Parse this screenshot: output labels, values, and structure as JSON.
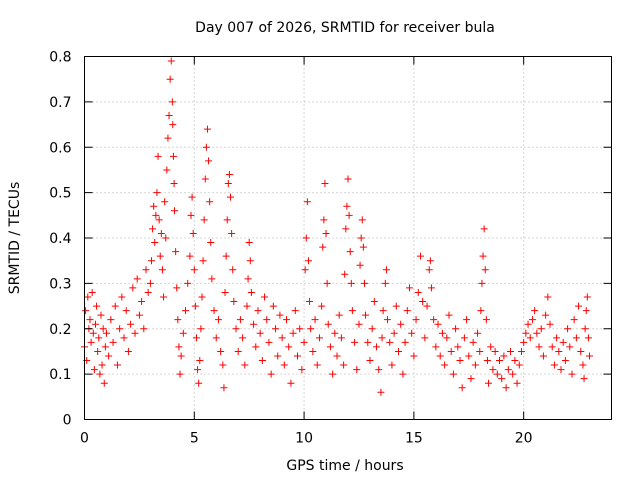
{
  "chart_data": {
    "type": "scatter",
    "title": "Day 007 of 2026, SRMTID for receiver bula",
    "xlabel": "GPS time / hours",
    "ylabel": "SRMTID / TECUs",
    "xlim": [
      0,
      24
    ],
    "ylim": [
      0,
      0.8
    ],
    "xticks": [
      0,
      5,
      10,
      15,
      20
    ],
    "xtick_labels": [
      "0",
      "5",
      "10",
      "15",
      "20"
    ],
    "yticks": [
      0,
      0.1,
      0.2,
      0.3,
      0.4,
      0.5,
      0.6,
      0.7,
      0.8
    ],
    "ytick_labels": [
      "0",
      "0.1",
      "0.2",
      "0.3",
      "0.4",
      "0.5",
      "0.6",
      "0.7",
      "0.8"
    ],
    "grid": true,
    "marker": "plus",
    "series_color": "#ff0000",
    "series": [
      {
        "name": "SRMTID",
        "points": [
          [
            0.0,
            0.16
          ],
          [
            0.05,
            0.24
          ],
          [
            0.1,
            0.13
          ],
          [
            0.15,
            0.27
          ],
          [
            0.2,
            0.2
          ],
          [
            0.25,
            0.22
          ],
          [
            0.3,
            0.17
          ],
          [
            0.35,
            0.28
          ],
          [
            0.4,
            0.19
          ],
          [
            0.45,
            0.11
          ],
          [
            0.5,
            0.21
          ],
          [
            0.55,
            0.25
          ],
          [
            0.6,
            0.15
          ],
          [
            0.65,
            0.18
          ],
          [
            0.7,
            0.1
          ],
          [
            0.75,
            0.23
          ],
          [
            0.8,
            0.12
          ],
          [
            0.85,
            0.2
          ],
          [
            0.9,
            0.08
          ],
          [
            0.95,
            0.16
          ],
          [
            1.0,
            0.19
          ],
          [
            1.1,
            0.14
          ],
          [
            1.2,
            0.22
          ],
          [
            1.3,
            0.17
          ],
          [
            1.4,
            0.25
          ],
          [
            1.5,
            0.12
          ],
          [
            1.6,
            0.2
          ],
          [
            1.7,
            0.27
          ],
          [
            1.8,
            0.18
          ],
          [
            1.9,
            0.24
          ],
          [
            2.0,
            0.15
          ],
          [
            2.1,
            0.21
          ],
          [
            2.2,
            0.29
          ],
          [
            2.3,
            0.19
          ],
          [
            2.4,
            0.31
          ],
          [
            2.5,
            0.23
          ],
          [
            2.6,
            0.26
          ],
          [
            2.7,
            0.2
          ],
          [
            2.8,
            0.33
          ],
          [
            2.9,
            0.28
          ],
          [
            3.0,
            0.3
          ],
          [
            3.05,
            0.35
          ],
          [
            3.1,
            0.42
          ],
          [
            3.15,
            0.47
          ],
          [
            3.2,
            0.39
          ],
          [
            3.25,
            0.45
          ],
          [
            3.3,
            0.5
          ],
          [
            3.35,
            0.58
          ],
          [
            3.4,
            0.44
          ],
          [
            3.45,
            0.36
          ],
          [
            3.5,
            0.41
          ],
          [
            3.55,
            0.33
          ],
          [
            3.6,
            0.27
          ],
          [
            3.65,
            0.48
          ],
          [
            3.7,
            0.4
          ],
          [
            3.75,
            0.55
          ],
          [
            3.8,
            0.62
          ],
          [
            3.85,
            0.67
          ],
          [
            3.9,
            0.75
          ],
          [
            3.95,
            0.79
          ],
          [
            4.0,
            0.7
          ],
          [
            4.02,
            0.65
          ],
          [
            4.05,
            0.58
          ],
          [
            4.08,
            0.52
          ],
          [
            4.1,
            0.46
          ],
          [
            4.15,
            0.37
          ],
          [
            4.2,
            0.29
          ],
          [
            4.25,
            0.22
          ],
          [
            4.3,
            0.16
          ],
          [
            4.35,
            0.1
          ],
          [
            4.4,
            0.14
          ],
          [
            4.5,
            0.19
          ],
          [
            4.6,
            0.24
          ],
          [
            4.7,
            0.3
          ],
          [
            4.8,
            0.36
          ],
          [
            4.85,
            0.45
          ],
          [
            4.9,
            0.49
          ],
          [
            4.95,
            0.41
          ],
          [
            5.0,
            0.33
          ],
          [
            5.05,
            0.25
          ],
          [
            5.1,
            0.18
          ],
          [
            5.15,
            0.11
          ],
          [
            5.2,
            0.08
          ],
          [
            5.25,
            0.13
          ],
          [
            5.3,
            0.2
          ],
          [
            5.35,
            0.27
          ],
          [
            5.4,
            0.35
          ],
          [
            5.45,
            0.44
          ],
          [
            5.5,
            0.53
          ],
          [
            5.55,
            0.6
          ],
          [
            5.6,
            0.64
          ],
          [
            5.65,
            0.57
          ],
          [
            5.7,
            0.48
          ],
          [
            5.75,
            0.39
          ],
          [
            5.8,
            0.31
          ],
          [
            5.9,
            0.24
          ],
          [
            6.0,
            0.18
          ],
          [
            6.1,
            0.22
          ],
          [
            6.2,
            0.15
          ],
          [
            6.3,
            0.12
          ],
          [
            6.35,
            0.07
          ],
          [
            6.4,
            0.28
          ],
          [
            6.45,
            0.36
          ],
          [
            6.5,
            0.44
          ],
          [
            6.55,
            0.52
          ],
          [
            6.6,
            0.54
          ],
          [
            6.65,
            0.49
          ],
          [
            6.7,
            0.41
          ],
          [
            6.75,
            0.33
          ],
          [
            6.8,
            0.26
          ],
          [
            6.9,
            0.2
          ],
          [
            7.0,
            0.15
          ],
          [
            7.1,
            0.22
          ],
          [
            7.2,
            0.18
          ],
          [
            7.3,
            0.12
          ],
          [
            7.4,
            0.25
          ],
          [
            7.45,
            0.31
          ],
          [
            7.5,
            0.39
          ],
          [
            7.55,
            0.35
          ],
          [
            7.6,
            0.28
          ],
          [
            7.7,
            0.21
          ],
          [
            7.8,
            0.16
          ],
          [
            7.9,
            0.24
          ],
          [
            8.0,
            0.19
          ],
          [
            8.1,
            0.13
          ],
          [
            8.2,
            0.27
          ],
          [
            8.3,
            0.22
          ],
          [
            8.4,
            0.17
          ],
          [
            8.5,
            0.1
          ],
          [
            8.6,
            0.25
          ],
          [
            8.7,
            0.2
          ],
          [
            8.8,
            0.14
          ],
          [
            8.9,
            0.23
          ],
          [
            9.0,
            0.18
          ],
          [
            9.1,
            0.12
          ],
          [
            9.2,
            0.22
          ],
          [
            9.3,
            0.16
          ],
          [
            9.4,
            0.08
          ],
          [
            9.5,
            0.19
          ],
          [
            9.6,
            0.24
          ],
          [
            9.7,
            0.14
          ],
          [
            9.8,
            0.2
          ],
          [
            9.9,
            0.11
          ],
          [
            10.0,
            0.17
          ],
          [
            10.05,
            0.33
          ],
          [
            10.1,
            0.4
          ],
          [
            10.15,
            0.48
          ],
          [
            10.2,
            0.35
          ],
          [
            10.25,
            0.26
          ],
          [
            10.3,
            0.2
          ],
          [
            10.4,
            0.15
          ],
          [
            10.5,
            0.22
          ],
          [
            10.6,
            0.12
          ],
          [
            10.7,
            0.18
          ],
          [
            10.8,
            0.25
          ],
          [
            10.85,
            0.38
          ],
          [
            10.9,
            0.44
          ],
          [
            10.95,
            0.52
          ],
          [
            11.0,
            0.41
          ],
          [
            11.05,
            0.3
          ],
          [
            11.1,
            0.21
          ],
          [
            11.2,
            0.16
          ],
          [
            11.3,
            0.1
          ],
          [
            11.4,
            0.19
          ],
          [
            11.5,
            0.14
          ],
          [
            11.6,
            0.23
          ],
          [
            11.7,
            0.18
          ],
          [
            11.8,
            0.12
          ],
          [
            11.85,
            0.32
          ],
          [
            11.9,
            0.42
          ],
          [
            11.95,
            0.47
          ],
          [
            12.0,
            0.53
          ],
          [
            12.05,
            0.45
          ],
          [
            12.1,
            0.37
          ],
          [
            12.15,
            0.3
          ],
          [
            12.2,
            0.24
          ],
          [
            12.3,
            0.17
          ],
          [
            12.4,
            0.11
          ],
          [
            12.5,
            0.21
          ],
          [
            12.55,
            0.34
          ],
          [
            12.6,
            0.4
          ],
          [
            12.65,
            0.44
          ],
          [
            12.7,
            0.38
          ],
          [
            12.75,
            0.3
          ],
          [
            12.8,
            0.23
          ],
          [
            12.9,
            0.17
          ],
          [
            13.0,
            0.13
          ],
          [
            13.1,
            0.2
          ],
          [
            13.2,
            0.26
          ],
          [
            13.3,
            0.16
          ],
          [
            13.4,
            0.11
          ],
          [
            13.5,
            0.06
          ],
          [
            13.55,
            0.18
          ],
          [
            13.6,
            0.24
          ],
          [
            13.7,
            0.3
          ],
          [
            13.75,
            0.33
          ],
          [
            13.8,
            0.22
          ],
          [
            13.9,
            0.17
          ],
          [
            14.0,
            0.12
          ],
          [
            14.1,
            0.19
          ],
          [
            14.2,
            0.25
          ],
          [
            14.3,
            0.15
          ],
          [
            14.4,
            0.21
          ],
          [
            14.5,
            0.1
          ],
          [
            14.6,
            0.17
          ],
          [
            14.7,
            0.24
          ],
          [
            14.8,
            0.29
          ],
          [
            14.9,
            0.19
          ],
          [
            15.0,
            0.14
          ],
          [
            15.1,
            0.22
          ],
          [
            15.2,
            0.28
          ],
          [
            15.3,
            0.36
          ],
          [
            15.4,
            0.26
          ],
          [
            15.5,
            0.18
          ],
          [
            15.6,
            0.25
          ],
          [
            15.7,
            0.33
          ],
          [
            15.75,
            0.35
          ],
          [
            15.8,
            0.29
          ],
          [
            15.9,
            0.22
          ],
          [
            16.0,
            0.16
          ],
          [
            16.1,
            0.21
          ],
          [
            16.2,
            0.14
          ],
          [
            16.3,
            0.19
          ],
          [
            16.4,
            0.12
          ],
          [
            16.5,
            0.18
          ],
          [
            16.6,
            0.23
          ],
          [
            16.7,
            0.15
          ],
          [
            16.8,
            0.1
          ],
          [
            16.9,
            0.2
          ],
          [
            17.0,
            0.16
          ],
          [
            17.1,
            0.13
          ],
          [
            17.2,
            0.07
          ],
          [
            17.3,
            0.18
          ],
          [
            17.4,
            0.22
          ],
          [
            17.5,
            0.14
          ],
          [
            17.6,
            0.09
          ],
          [
            17.7,
            0.17
          ],
          [
            17.8,
            0.12
          ],
          [
            17.9,
            0.19
          ],
          [
            18.0,
            0.15
          ],
          [
            18.05,
            0.24
          ],
          [
            18.1,
            0.3
          ],
          [
            18.15,
            0.36
          ],
          [
            18.2,
            0.42
          ],
          [
            18.25,
            0.33
          ],
          [
            18.3,
            0.22
          ],
          [
            18.35,
            0.13
          ],
          [
            18.4,
            0.08
          ],
          [
            18.5,
            0.16
          ],
          [
            18.6,
            0.11
          ],
          [
            18.7,
            0.15
          ],
          [
            18.8,
            0.1
          ],
          [
            18.9,
            0.13
          ],
          [
            19.0,
            0.09
          ],
          [
            19.1,
            0.14
          ],
          [
            19.2,
            0.07
          ],
          [
            19.3,
            0.11
          ],
          [
            19.4,
            0.15
          ],
          [
            19.5,
            0.1
          ],
          [
            19.6,
            0.13
          ],
          [
            19.7,
            0.08
          ],
          [
            19.8,
            0.12
          ],
          [
            19.9,
            0.15
          ],
          [
            20.0,
            0.17
          ],
          [
            20.1,
            0.19
          ],
          [
            20.2,
            0.21
          ],
          [
            20.3,
            0.18
          ],
          [
            20.4,
            0.22
          ],
          [
            20.5,
            0.24
          ],
          [
            20.6,
            0.19
          ],
          [
            20.7,
            0.16
          ],
          [
            20.8,
            0.2
          ],
          [
            20.9,
            0.14
          ],
          [
            21.0,
            0.23
          ],
          [
            21.1,
            0.27
          ],
          [
            21.2,
            0.21
          ],
          [
            21.3,
            0.16
          ],
          [
            21.4,
            0.12
          ],
          [
            21.5,
            0.18
          ],
          [
            21.6,
            0.15
          ],
          [
            21.7,
            0.11
          ],
          [
            21.8,
            0.17
          ],
          [
            21.9,
            0.13
          ],
          [
            22.0,
            0.2
          ],
          [
            22.1,
            0.16
          ],
          [
            22.2,
            0.1
          ],
          [
            22.3,
            0.22
          ],
          [
            22.4,
            0.18
          ],
          [
            22.5,
            0.25
          ],
          [
            22.6,
            0.15
          ],
          [
            22.7,
            0.12
          ],
          [
            22.75,
            0.09
          ],
          [
            22.8,
            0.2
          ],
          [
            22.85,
            0.24
          ],
          [
            22.9,
            0.27
          ],
          [
            22.95,
            0.18
          ],
          [
            23.0,
            0.14
          ]
        ]
      }
    ]
  }
}
